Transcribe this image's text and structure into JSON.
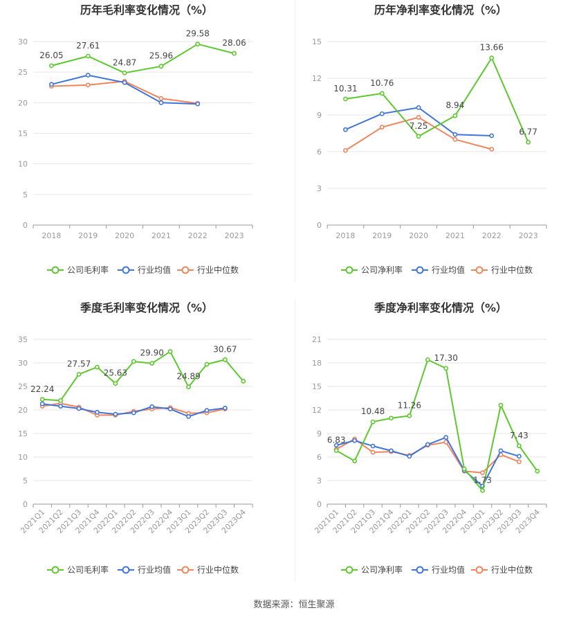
{
  "colors": {
    "company": "#5cc82e",
    "industry_avg": "#3f74d8",
    "industry_median": "#f0845c",
    "grid": "#e6e6e6",
    "axis": "#999999"
  },
  "legend_labels": {
    "gross": [
      "公司毛利率",
      "行业均值",
      "行业中位数"
    ],
    "net": [
      "公司净利率",
      "行业均值",
      "行业中位数"
    ]
  },
  "source_text": "数据来源：恒生聚源",
  "chart_data": [
    {
      "type": "line",
      "title": "历年毛利率变化情况（%）",
      "categories": [
        "2018",
        "2019",
        "2020",
        "2021",
        "2022",
        "2023"
      ],
      "ylim": [
        0,
        30
      ],
      "yticks": [
        0,
        5,
        10,
        15,
        20,
        25,
        30
      ],
      "grid": true,
      "legend_position": "bottom",
      "series": [
        {
          "name": "公司毛利率",
          "values": [
            26.05,
            27.61,
            24.87,
            25.96,
            29.58,
            28.06
          ],
          "labels": [
            "26.05",
            "27.61",
            "24.87",
            "25.96",
            "29.58",
            "28.06"
          ]
        },
        {
          "name": "行业均值",
          "values": [
            23.0,
            24.5,
            23.3,
            20.0,
            19.8,
            null
          ]
        },
        {
          "name": "行业中位数",
          "values": [
            22.7,
            22.9,
            23.5,
            20.7,
            19.9,
            null
          ]
        }
      ]
    },
    {
      "type": "line",
      "title": "历年净利率变化情况（%）",
      "categories": [
        "2018",
        "2019",
        "2020",
        "2021",
        "2022",
        "2023"
      ],
      "ylim": [
        0,
        15
      ],
      "yticks": [
        0,
        3,
        6,
        9,
        12,
        15
      ],
      "grid": true,
      "legend_position": "bottom",
      "series": [
        {
          "name": "公司净利率",
          "values": [
            10.31,
            10.76,
            7.25,
            8.94,
            13.66,
            6.77
          ],
          "labels": [
            "10.31",
            "10.76",
            "7.25",
            "8.94",
            "13.66",
            "6.77"
          ]
        },
        {
          "name": "行业均值",
          "values": [
            7.8,
            9.1,
            9.6,
            7.4,
            7.3,
            null
          ]
        },
        {
          "name": "行业中位数",
          "values": [
            6.1,
            8.0,
            8.8,
            7.0,
            6.2,
            null
          ]
        }
      ]
    },
    {
      "type": "line",
      "title": "季度毛利率变化情况（%）",
      "categories": [
        "2021Q1",
        "2021Q2",
        "2021Q3",
        "2021Q4",
        "2022Q1",
        "2022Q2",
        "2022Q3",
        "2022Q4",
        "2023Q1",
        "2023Q2",
        "2023Q3",
        "2023Q4"
      ],
      "ylim": [
        0,
        35
      ],
      "yticks": [
        0,
        5,
        10,
        15,
        20,
        25,
        30,
        35
      ],
      "grid": true,
      "legend_position": "bottom",
      "series": [
        {
          "name": "公司毛利率",
          "values": [
            22.24,
            22.0,
            27.57,
            29.1,
            25.63,
            30.3,
            29.9,
            32.4,
            24.89,
            29.7,
            30.67,
            26.1
          ],
          "labels": [
            "22.24",
            "",
            "27.57",
            "",
            "25.63",
            "",
            "29.90",
            "",
            "24.89",
            "",
            "30.67",
            ""
          ]
        },
        {
          "name": "行业均值",
          "values": [
            21.3,
            20.8,
            20.3,
            19.5,
            19.1,
            19.4,
            20.7,
            20.2,
            18.6,
            19.9,
            20.4,
            null
          ]
        },
        {
          "name": "行业中位数",
          "values": [
            20.8,
            21.4,
            20.6,
            18.9,
            18.9,
            19.7,
            20.2,
            20.5,
            19.3,
            19.4,
            20.2,
            null
          ]
        }
      ]
    },
    {
      "type": "line",
      "title": "季度净利率变化情况（%）",
      "categories": [
        "2021Q1",
        "2021Q2",
        "2021Q3",
        "2021Q4",
        "2022Q1",
        "2022Q2",
        "2022Q3",
        "2022Q4",
        "2023Q1",
        "2023Q2",
        "2023Q3",
        "2023Q4"
      ],
      "ylim": [
        0,
        21
      ],
      "yticks": [
        0,
        3,
        6,
        9,
        12,
        15,
        18,
        21
      ],
      "grid": true,
      "legend_position": "bottom",
      "series": [
        {
          "name": "公司净利率",
          "values": [
            6.83,
            5.5,
            10.48,
            10.95,
            11.26,
            18.4,
            17.3,
            4.5,
            1.73,
            12.6,
            7.43,
            4.2
          ],
          "labels": [
            "6.83",
            "",
            "10.48",
            "",
            "11.26",
            "",
            "17.30",
            "",
            "1.73",
            "",
            "7.43",
            ""
          ]
        },
        {
          "name": "行业均值",
          "values": [
            7.5,
            8.1,
            7.4,
            6.8,
            6.1,
            7.6,
            8.5,
            4.3,
            2.3,
            6.8,
            6.1,
            null
          ]
        },
        {
          "name": "行业中位数",
          "values": [
            7.0,
            8.3,
            6.6,
            6.7,
            6.2,
            7.5,
            7.9,
            4.2,
            4.0,
            6.3,
            5.4,
            null
          ]
        }
      ]
    }
  ]
}
